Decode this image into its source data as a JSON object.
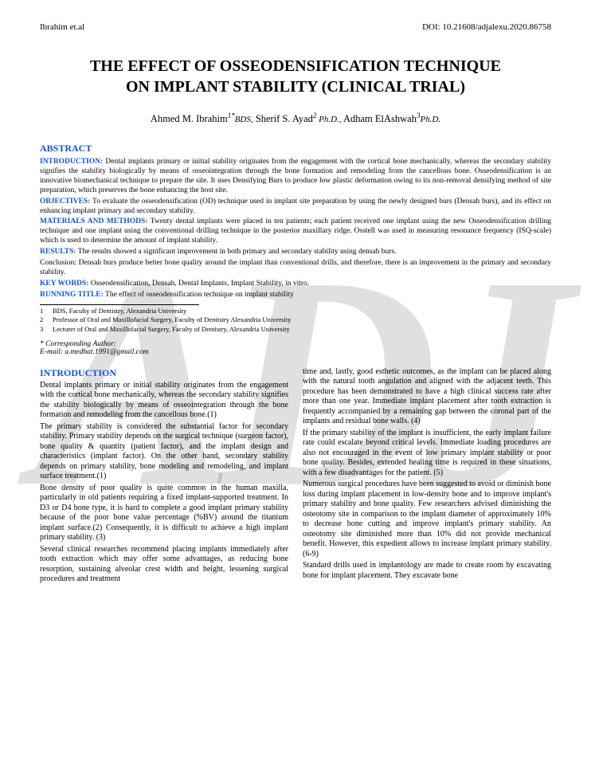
{
  "header": {
    "left": "Ibrahim et.al",
    "right": "DOI: 10.21608/adjalexu.2020.86758"
  },
  "watermark": "ADJ",
  "title_line1": "THE EFFECT OF OSSEODENSIFICATION TECHNIQUE",
  "title_line2": "ON IMPLANT STABILITY (CLINICAL TRIAL)",
  "authors": {
    "a1_name": "Ahmed M. Ibrahim",
    "a1_sup": "1*",
    "a1_deg": "BDS,",
    "a2_name": "Sherif S. Ayad",
    "a2_sup": "2",
    "a2_deg": " Ph.D.,",
    "a3_name": "Adham ElAshwah",
    "a3_sup": "3",
    "a3_deg": "Ph.D."
  },
  "abstract_head": "ABSTRACT",
  "abstract": {
    "intro_label": "INTRODUCTION:",
    "intro_text": " Dental implants primary or initial stability originates from the engagement with the cortical bone mechanically, whereas the secondary stability signifies the stability biologically by means of osseointegration through the bone formation and remodeling from the cancellous bone. Osseodensification is an innovative biomechanical technique to prepare the site. It uses Densifying Burs to produce low plastic deformation owing to its non-removal densifying method of site preparation, which preserves the bone enhancing the host site.",
    "obj_label": "OBJECTIVES:",
    "obj_text": " To evaluate the osseodensification (OD) technique used in implant site preparation by using the newly designed burs (Densah burs), and its effect on enhancing implant primary and secondary stability.",
    "mat_label": "MATERIALS AND METHODS:",
    "mat_text": " Twenty dental implants were placed in ten patients; each patient received one implant using the new Osseodensification drilling technique and one implant using the conventional drilling technique in the posterior maxillary ridge. Osstell was used in measuring resonance frequency (ISQ-scale) which is used to determine the amount of implant stability.",
    "res_label": "RESULTS:",
    "res_text": " The results showed a significant improvement in both primary and secondary stability using densah burs.",
    "conc_text": "Conclusion: Densah burs produce better bone quality around the implant than conventional drills, and therefore, there is an improvement in the primary and secondary stability.",
    "kw_label": "KEY WORDS:",
    "kw_text": " Osseodensification, Densah, Dental Implants, Implant Stability, in vitro.",
    "rt_label": "RUNNING TITLE:",
    "rt_text": " The effect of osseodensification technique on implant stability"
  },
  "affiliations": [
    {
      "num": "1",
      "text": "BDS, Faculty of Dentistry, Alexandria University"
    },
    {
      "num": "2",
      "text": "Professor of Oral and Maxillofacial Surgery, Faculty of Dentistry Alexandria University"
    },
    {
      "num": "3",
      "text": "Lecturer of Oral and Maxillofacial Surgery, Faculty of Dentistry, Alexandria University"
    }
  ],
  "corresponding": {
    "label": "* Corresponding Author:",
    "email": "E-mail: a.medhat.1991@gmail.com"
  },
  "intro_head": "INTRODUCTION",
  "body": {
    "col1": {
      "p1": "Dental implants primary or initial stability originates from the engagement with the cortical bone mechanically, whereas the secondary stability signifies the stability biologically by means of osseointegration through the bone formation and remodeling from the cancellous bone.(1)",
      "p2": "The primary stability is considered the substantial factor for secondary stability. Primary stability depends on the surgical technique (surgeon factor), bone quality & quantity (patient factor), and the implant design and characteristics (implant factor). On the other hand, secondary stability depends on primary stability, bone modeling and remodeling, and implant surface treatment.(1)",
      "p3": "Bone density of poor quality is quite common in the human maxilla, particularly in old patients requiring a fixed implant-supported treatment. In D3 or D4 bone type, it is hard to complete a good implant primary stability because of the poor bone value percentage (%BV) around the titanium implant surface.(2) Consequently, it is difficult to achieve a high implant primary stability. (3)",
      "p4": "Several clinical researches recommend placing implants immediately after tooth extraction which may offer some advantages, as reducing bone resorption, sustaining alveolar crest width and height, lessening surgical procedures and treatment"
    },
    "col2": {
      "p1": "time and, lastly, good esthetic outcomes, as the implant can be placed along with the natural tooth angulation and aligned with the adjacent teeth. This procedure has been demonstrated to have a high clinical success rate after more than one year. Immediate implant placement after tooth extraction is frequently accompanied by a remaining gap between the coronal part of the implants and residual bone walls. (4)",
      "p2": "If the primary stability of the implant is insufficient, the early implant failure rate could escalate beyond critical levels. Immediate loading procedures are also not encouraged in the event of low primary implant stability or poor bone quality. Besides, extended healing time is required in these situations, with a few disadvantages for the patient. (5)",
      "p3": "Numerous surgical procedures have been suggested to avoid or diminish bone loss during implant placement in low-density bone and to improve implant's primary stability and bone quality. Few researchers advised diminishing the osteotomy site in comparison to the implant diameter of approximately 10% to decrease bone cutting and improve implant's primary stability. An osteotomy site diminished more than 10% did not provide mechanical benefit. However, this expedient allows to increase implant primary stability. (6-9)",
      "p4": "Standard drills used in implantology are made to create room by excavating bone for implant placement. They excavate bone"
    }
  }
}
